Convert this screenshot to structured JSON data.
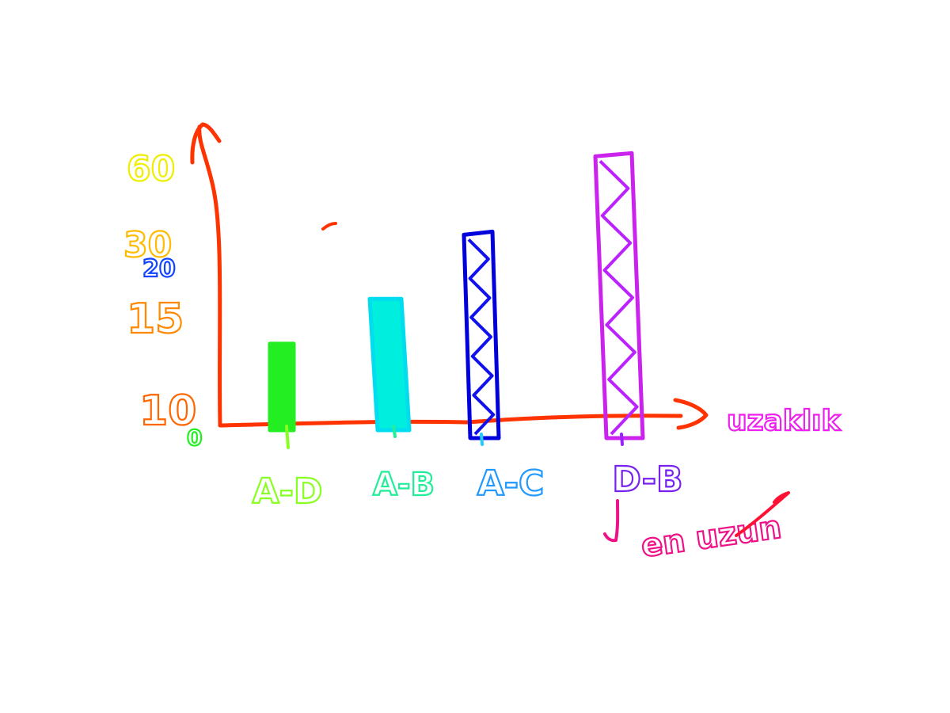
{
  "chart_data": {
    "type": "bar",
    "categories": [
      "A-D",
      "A-B",
      "A-C",
      "D-B"
    ],
    "values": [
      14,
      22,
      34,
      48
    ],
    "y_tick_labels": [
      "0",
      "10",
      "15",
      "20",
      "30",
      "60"
    ],
    "x_axis_label": "uzaklık",
    "annotation": "en uzun",
    "title": "",
    "grid": false,
    "legend": "none",
    "ylim": [
      0,
      52
    ],
    "colors": {
      "axis": "#ff3300",
      "bars": [
        "#22ee22",
        "#00eedd",
        "#1111ee",
        "#bb22ff"
      ],
      "bar_outline": [
        "#22ee22",
        "#00ddee",
        "#0000dd",
        "#cc22ee"
      ],
      "category_labels": [
        "#88ff22",
        "#22ee99",
        "#2299ff",
        "#7722ee"
      ],
      "tick_labels": [
        "#22ee22",
        "#ff6600",
        "#ff8800",
        "#1144ff",
        "#ffbb00",
        "#eeee00"
      ],
      "x_axis_label": "#ee22ee",
      "annotation": "#ee1188",
      "annotation_arrow": "#ff1133"
    }
  }
}
